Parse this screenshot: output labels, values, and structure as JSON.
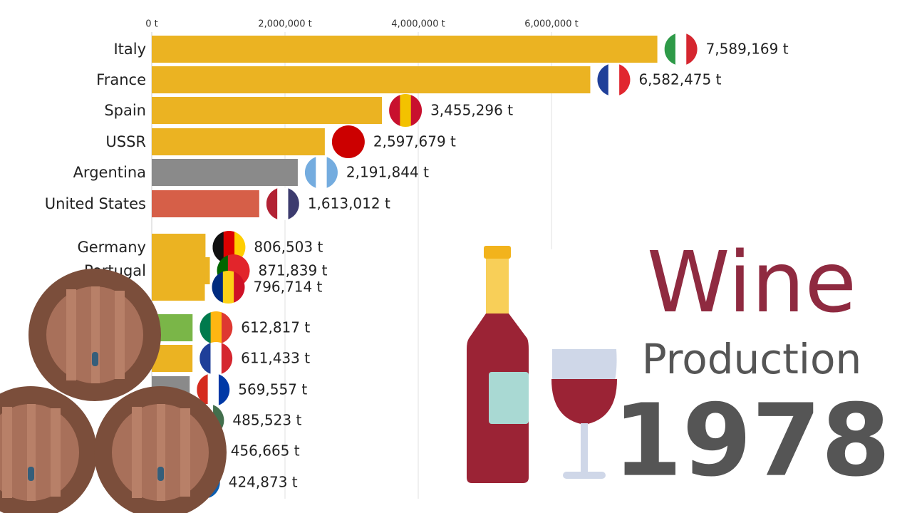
{
  "chart_data": {
    "type": "bar",
    "orientation": "horizontal",
    "title": "Wine",
    "subtitle": "Production",
    "period_label": "1978",
    "categories": [
      "Italy",
      "France",
      "Spain",
      "USSR",
      "Argentina",
      "United States",
      "Germany",
      "Portugal",
      null,
      null,
      null,
      null,
      null,
      null,
      null
    ],
    "values": [
      7589169,
      6582475,
      3455296,
      2597679,
      2191844,
      1613012,
      806503,
      871839,
      796714,
      612817,
      611433,
      569557,
      485523,
      456665,
      424873
    ],
    "value_labels": [
      "7,589,169 t",
      "6,582,475 t",
      "3,455,296 t",
      "2,597,679 t",
      "2,191,844 t",
      "1,613,012 t",
      "806,503 t",
      "871,839 t",
      "796,714 t",
      "612,817 t",
      "611,433 t",
      "569,557 t",
      "485,523 t",
      "456,665 t",
      "424,873 t"
    ],
    "colors": [
      "#ebb322",
      "#ebb322",
      "#ebb322",
      "#ebb322",
      "#8a8a8a",
      "#d65f48",
      "#ebb322",
      "#ebb322",
      "#ebb322",
      "#7ab648",
      "#ebb322",
      "#8a8a8a",
      "#ebb322",
      "#ebb322",
      "#ebb322"
    ],
    "xlim": [
      0,
      8000000
    ],
    "xticks": [
      {
        "value": 0,
        "label": "0 t"
      },
      {
        "value": 2000000,
        "label": "2,000,000 t"
      },
      {
        "value": 4000000,
        "label": "4,000,000 t"
      },
      {
        "value": 6000000,
        "label": "6,000,000 t"
      }
    ],
    "grid": true
  }
}
